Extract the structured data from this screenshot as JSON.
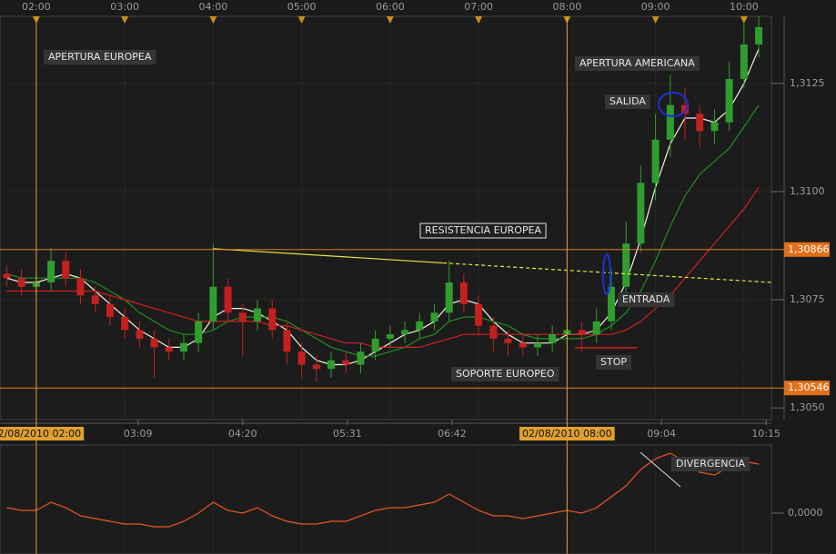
{
  "chart_data": {
    "type": "candlestick",
    "xlim": [
      1.59,
      10.31
    ],
    "ylim": [
      1.30473,
      1.31405
    ],
    "xticks": [
      {
        "value": 2,
        "label": "02:00"
      },
      {
        "value": 3,
        "label": "03:00"
      },
      {
        "value": 4,
        "label": "04:00"
      },
      {
        "value": 5,
        "label": "05:00"
      },
      {
        "value": 6,
        "label": "06:00"
      },
      {
        "value": 7,
        "label": "07:00"
      },
      {
        "value": 8,
        "label": "08:00"
      },
      {
        "value": 9,
        "label": "09:00"
      },
      {
        "value": 10,
        "label": "10:00"
      }
    ],
    "xticks_bottom": [
      {
        "value": 3.15,
        "label": "03:09"
      },
      {
        "value": 4.333,
        "label": "04:20"
      },
      {
        "value": 5.517,
        "label": "05:31"
      },
      {
        "value": 6.7,
        "label": "06:42"
      },
      {
        "value": 9.067,
        "label": "09:04"
      },
      {
        "value": 10.25,
        "label": "10:15"
      }
    ],
    "yticks": [
      {
        "value": 1.305,
        "label": "1,3050"
      },
      {
        "value": 1.3075,
        "label": "1,3075"
      },
      {
        "value": 1.31,
        "label": "1,3100"
      },
      {
        "value": 1.3125,
        "label": "1,3125"
      }
    ],
    "grid": true,
    "sessions": [
      {
        "value": 2,
        "label": "02/08/2010 02:00"
      },
      {
        "value": 8,
        "label": "02/08/2010 08:00"
      }
    ],
    "levels": [
      {
        "value": 1.30866,
        "label": "1,30866"
      },
      {
        "value": 1.30546,
        "label": "1,30546"
      }
    ],
    "x": [
      1.667,
      1.833,
      2,
      2.167,
      2.333,
      2.5,
      2.667,
      2.833,
      3,
      3.167,
      3.333,
      3.5,
      3.667,
      3.833,
      4,
      4.167,
      4.333,
      4.5,
      4.667,
      4.833,
      5,
      5.167,
      5.333,
      5.5,
      5.667,
      5.833,
      6,
      6.167,
      6.333,
      6.5,
      6.667,
      6.833,
      7,
      7.167,
      7.333,
      7.5,
      7.667,
      7.833,
      8,
      8.167,
      8.333,
      8.5,
      8.667,
      8.833,
      9,
      9.167,
      9.333,
      9.5,
      9.667,
      9.833,
      10,
      10.167
    ],
    "open": [
      1.3081,
      1.308,
      1.3078,
      1.3079,
      1.3084,
      1.308,
      1.3076,
      1.3074,
      1.3071,
      1.3068,
      1.3066,
      1.3064,
      1.3063,
      1.3065,
      1.307,
      1.3078,
      1.3072,
      1.307,
      1.3073,
      1.3068,
      1.3063,
      1.306,
      1.3059,
      1.3061,
      1.306,
      1.3063,
      1.3066,
      1.3067,
      1.3068,
      1.307,
      1.3072,
      1.3079,
      1.3074,
      1.3069,
      1.3066,
      1.3065,
      1.3064,
      1.3065,
      1.3067,
      1.3068,
      1.3067,
      1.307,
      1.3078,
      1.3088,
      1.3102,
      1.3112,
      1.312,
      1.3118,
      1.3114,
      1.3116,
      1.3126,
      1.3134
    ],
    "high": [
      1.3083,
      1.3082,
      1.3081,
      1.3087,
      1.3086,
      1.3082,
      1.3078,
      1.3076,
      1.3073,
      1.307,
      1.3068,
      1.3066,
      1.3067,
      1.3072,
      1.3088,
      1.308,
      1.3074,
      1.3075,
      1.3075,
      1.307,
      1.3065,
      1.3062,
      1.3063,
      1.3063,
      1.3065,
      1.3068,
      1.3069,
      1.307,
      1.3072,
      1.3074,
      1.3084,
      1.3081,
      1.3076,
      1.3071,
      1.3068,
      1.3067,
      1.3067,
      1.3069,
      1.307,
      1.307,
      1.3073,
      1.3082,
      1.3093,
      1.3106,
      1.3118,
      1.3127,
      1.3124,
      1.312,
      1.3119,
      1.313,
      1.314,
      1.3142
    ],
    "low": [
      1.3078,
      1.3076,
      1.3076,
      1.3077,
      1.3078,
      1.3074,
      1.3072,
      1.3069,
      1.3066,
      1.3064,
      1.3057,
      1.3061,
      1.3061,
      1.3063,
      1.3068,
      1.307,
      1.3062,
      1.3068,
      1.3066,
      1.306,
      1.3057,
      1.3056,
      1.3057,
      1.3058,
      1.3058,
      1.3061,
      1.3064,
      1.3065,
      1.3066,
      1.3068,
      1.307,
      1.3072,
      1.3067,
      1.3063,
      1.3062,
      1.3062,
      1.3062,
      1.3063,
      1.3065,
      1.3063,
      1.3065,
      1.3068,
      1.3076,
      1.3086,
      1.3098,
      1.3108,
      1.3112,
      1.311,
      1.3111,
      1.3114,
      1.3124,
      1.3131
    ],
    "close": [
      1.308,
      1.3078,
      1.3079,
      1.3084,
      1.308,
      1.3076,
      1.3074,
      1.3071,
      1.3068,
      1.3066,
      1.3064,
      1.3063,
      1.3065,
      1.307,
      1.3078,
      1.3072,
      1.307,
      1.3073,
      1.3068,
      1.3063,
      1.306,
      1.3059,
      1.3061,
      1.306,
      1.3063,
      1.3066,
      1.3067,
      1.3068,
      1.307,
      1.3072,
      1.3079,
      1.3074,
      1.3069,
      1.3066,
      1.3065,
      1.3064,
      1.3065,
      1.3067,
      1.3068,
      1.3067,
      1.307,
      1.3078,
      1.3088,
      1.3102,
      1.3112,
      1.312,
      1.3118,
      1.3114,
      1.3116,
      1.3126,
      1.3134,
      1.3138
    ],
    "up_color": "#2f9e2f",
    "down_color": "#c42020",
    "moving_averages": [
      {
        "color": "#f2f2dc",
        "values": [
          1.308,
          1.3079,
          1.3079,
          1.308,
          1.3081,
          1.308,
          1.3077,
          1.3074,
          1.3071,
          1.3068,
          1.3066,
          1.3064,
          1.3064,
          1.3066,
          1.3071,
          1.3073,
          1.3073,
          1.3072,
          1.307,
          1.3068,
          1.3064,
          1.3061,
          1.306,
          1.306,
          1.3061,
          1.3063,
          1.3065,
          1.3067,
          1.3068,
          1.307,
          1.3074,
          1.3075,
          1.3074,
          1.307,
          1.3067,
          1.3065,
          1.3065,
          1.3065,
          1.3067,
          1.3067,
          1.3068,
          1.3072,
          1.3079,
          1.3089,
          1.3101,
          1.3111,
          1.3117,
          1.3117,
          1.3116,
          1.3119,
          1.3125,
          1.3133
        ]
      },
      {
        "color": "#1f8f1f",
        "values": [
          1.3081,
          1.308,
          1.308,
          1.308,
          1.308,
          1.308,
          1.3079,
          1.3077,
          1.3075,
          1.3072,
          1.307,
          1.3068,
          1.3067,
          1.3067,
          1.3068,
          1.307,
          1.3071,
          1.3071,
          1.3071,
          1.307,
          1.3068,
          1.3066,
          1.3064,
          1.3063,
          1.3062,
          1.3062,
          1.3063,
          1.3064,
          1.3066,
          1.3067,
          1.307,
          1.3071,
          1.3071,
          1.307,
          1.3069,
          1.3067,
          1.3066,
          1.3066,
          1.3066,
          1.3066,
          1.3067,
          1.3069,
          1.3072,
          1.3077,
          1.3084,
          1.3092,
          1.3099,
          1.3104,
          1.3107,
          1.311,
          1.3115,
          1.312
        ]
      },
      {
        "color": "#d02020",
        "values": [
          1.3077,
          1.3077,
          1.3077,
          1.3077,
          1.3077,
          1.3077,
          1.3077,
          1.3076,
          1.3075,
          1.3074,
          1.3073,
          1.3072,
          1.3071,
          1.307,
          1.307,
          1.307,
          1.307,
          1.307,
          1.3069,
          1.3069,
          1.3068,
          1.3067,
          1.3066,
          1.3065,
          1.3065,
          1.3064,
          1.3064,
          1.3064,
          1.3064,
          1.3065,
          1.3066,
          1.3067,
          1.3067,
          1.3067,
          1.3067,
          1.3067,
          1.3067,
          1.3067,
          1.3067,
          1.3067,
          1.3067,
          1.3067,
          1.3068,
          1.307,
          1.3073,
          1.3076,
          1.308,
          1.3084,
          1.3088,
          1.3092,
          1.3096,
          1.3101
        ]
      }
    ],
    "trendline": {
      "x": [
        4,
        6.6,
        10.31
      ],
      "y": [
        1.30868,
        1.30835,
        1.3079
      ],
      "color": "#e8e840"
    },
    "stop_line": {
      "x": [
        8.09,
        8.79
      ],
      "y": 1.30639,
      "color": "#d02020"
    },
    "oscillator": {
      "color": "#e8561e",
      "ylim": [
        -0.0015,
        0.0025
      ],
      "yticks": [
        {
          "value": 0,
          "label": "0,0000"
        }
      ],
      "values": [
        0.0002,
        0.0001,
        0.0001,
        0.0004,
        0.0002,
        -0.0001,
        -0.0002,
        -0.0003,
        -0.0004,
        -0.0004,
        -0.0005,
        -0.0005,
        -0.0003,
        0,
        0.0004,
        0.0001,
        0,
        0.0002,
        -0.0001,
        -0.0003,
        -0.0004,
        -0.0004,
        -0.0003,
        -0.0003,
        -0.0001,
        0.0001,
        0.0002,
        0.0002,
        0.0003,
        0.0004,
        0.0007,
        0.0004,
        0.0001,
        -0.0001,
        -0.0001,
        -0.0002,
        -0.0001,
        0,
        0.0001,
        0,
        0.0002,
        0.0006,
        0.001,
        0.0016,
        0.002,
        0.0022,
        0.0019,
        0.0015,
        0.0014,
        0.0017,
        0.0019,
        0.0018
      ]
    },
    "annotations": [
      "APERTURA EUROPEA",
      "APERTURA AMERICANA",
      "SALIDA",
      "RESISTENCIA EUROPEA",
      "ENTRADA",
      "SOPORTE EUROPEO",
      "STOP",
      "DIVERGENCIA"
    ]
  }
}
